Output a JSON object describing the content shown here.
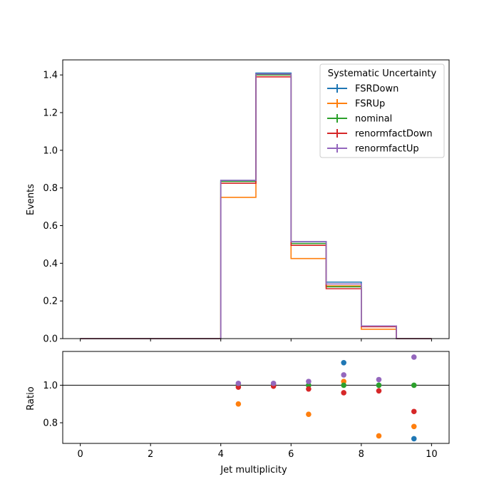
{
  "chart_data": [
    {
      "type": "line",
      "plot_style": "step histogram",
      "xlabel": "",
      "ylabel": "Events",
      "xlim": [
        -0.5,
        10.5
      ],
      "ylim": [
        0,
        1.48
      ],
      "x_ticks": [
        "0",
        "2",
        "4",
        "6",
        "8",
        "10"
      ],
      "y_ticks": [
        "0.0",
        "0.2",
        "0.4",
        "0.6",
        "0.8",
        "1.0",
        "1.2",
        "1.4"
      ],
      "y_tick_values": [
        0.0,
        0.2,
        0.4,
        0.6,
        0.8,
        1.0,
        1.2,
        1.4
      ],
      "bin_edges": [
        0,
        1,
        2,
        3,
        4,
        5,
        6,
        7,
        8,
        9,
        10
      ],
      "legend": {
        "title": "Systematic Uncertainty",
        "placement": "top-right"
      },
      "series": [
        {
          "name": "FSRDown",
          "color": "#1f77b4",
          "values": [
            0,
            0,
            0,
            0,
            0.84,
            1.41,
            0.515,
            0.3,
            0.065,
            0.0
          ]
        },
        {
          "name": "FSRUp",
          "color": "#ff7f0e",
          "values": [
            0,
            0,
            0,
            0,
            0.75,
            1.4,
            0.425,
            0.28,
            0.05,
            0.0
          ]
        },
        {
          "name": "nominal",
          "color": "#2ca02c",
          "values": [
            0,
            0,
            0,
            0,
            0.835,
            1.4,
            0.505,
            0.275,
            0.065,
            0.0
          ]
        },
        {
          "name": "renormfactDown",
          "color": "#d62728",
          "values": [
            0,
            0,
            0,
            0,
            0.825,
            1.39,
            0.495,
            0.265,
            0.063,
            0.0
          ]
        },
        {
          "name": "renormfactUp",
          "color": "#9467bd",
          "values": [
            0,
            0,
            0,
            0,
            0.84,
            1.405,
            0.515,
            0.29,
            0.067,
            0.0
          ]
        }
      ]
    },
    {
      "type": "scatter",
      "xlabel": "Jet multiplicity",
      "ylabel": "Ratio",
      "xlim": [
        -0.5,
        10.5
      ],
      "ylim": [
        0.69,
        1.18
      ],
      "x_ticks": [
        "0",
        "2",
        "4",
        "6",
        "8",
        "10"
      ],
      "x_tick_values": [
        0,
        2,
        4,
        6,
        8,
        10
      ],
      "y_ticks": [
        "0.8",
        "1.0"
      ],
      "y_tick_values": [
        0.8,
        1.0
      ],
      "reference_line": 1.0,
      "x": [
        4.5,
        5.5,
        6.5,
        7.5,
        8.5,
        9.5
      ],
      "series": [
        {
          "name": "FSRDown",
          "color": "#1f77b4",
          "values": [
            1.0,
            1.0,
            1.0,
            1.12,
            1.0,
            0.715
          ]
        },
        {
          "name": "FSRUp",
          "color": "#ff7f0e",
          "values": [
            0.9,
            1.0,
            0.845,
            1.02,
            0.73,
            0.78
          ]
        },
        {
          "name": "nominal",
          "color": "#2ca02c",
          "values": [
            1.0,
            1.0,
            1.0,
            1.0,
            1.0,
            1.0
          ]
        },
        {
          "name": "renormfactDown",
          "color": "#d62728",
          "values": [
            0.99,
            0.995,
            0.98,
            0.96,
            0.97,
            0.86
          ]
        },
        {
          "name": "renormfactUp",
          "color": "#9467bd",
          "values": [
            1.01,
            1.01,
            1.02,
            1.055,
            1.03,
            1.15
          ]
        }
      ]
    }
  ]
}
